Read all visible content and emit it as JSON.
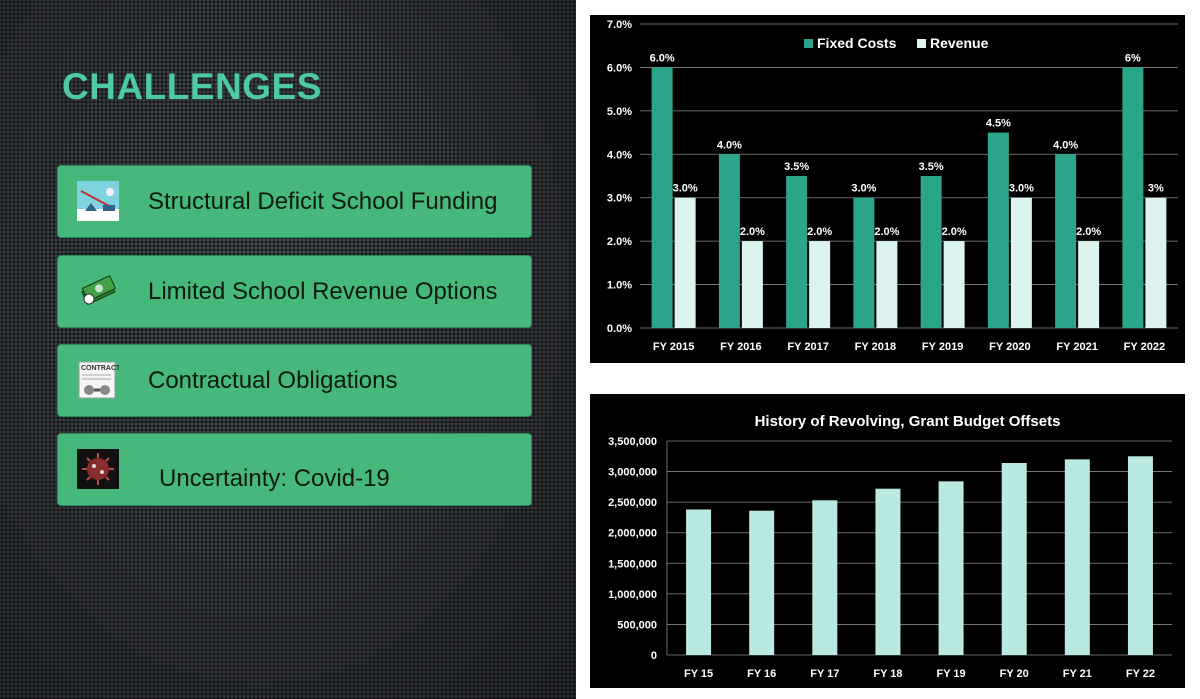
{
  "slide": {
    "title": "CHALLENGES"
  },
  "challenges": [
    {
      "label": "Structural Deficit School Funding",
      "icon": "scale-balance-icon"
    },
    {
      "label": "Limited School Revenue Options",
      "icon": "money-stack-icon"
    },
    {
      "label": "Contractual Obligations",
      "icon": "contract-document-icon"
    },
    {
      "label": "Uncertainty: Covid-19",
      "icon": "virus-icon"
    }
  ],
  "colors": {
    "title": "#4dc9a4",
    "card": "#47b87c",
    "fixed_costs": "#2aa58a",
    "revenue": "#ddf3ef",
    "offsets_bar": "#b9e9e0"
  },
  "chart_data": [
    {
      "type": "bar",
      "title": "",
      "categories": [
        "FY 2015",
        "FY 2016",
        "FY 2017",
        "FY 2018",
        "FY 2019",
        "FY 2020",
        "FY 2021",
        "FY 2022"
      ],
      "series": [
        {
          "name": "Fixed Costs",
          "values": [
            6.0,
            4.0,
            3.5,
            3.0,
            3.5,
            4.5,
            4.0,
            6.0
          ],
          "labels": [
            "6.0%",
            "4.0%",
            "3.5%",
            "3.0%",
            "3.5%",
            "4.5%",
            "4.0%",
            "6%"
          ]
        },
        {
          "name": "Revenue",
          "values": [
            3.0,
            2.0,
            2.0,
            2.0,
            2.0,
            3.0,
            2.0,
            3.0
          ],
          "labels": [
            "3.0%",
            "2.0%",
            "2.0%",
            "2.0%",
            "2.0%",
            "3.0%",
            "2.0%",
            "3%"
          ]
        }
      ],
      "ylim": [
        0,
        7
      ],
      "yticks": [
        "0.0%",
        "1.0%",
        "2.0%",
        "3.0%",
        "4.0%",
        "5.0%",
        "6.0%",
        "7.0%"
      ],
      "grid": true,
      "legend": "top-center"
    },
    {
      "type": "bar",
      "title": "History of Revolving, Grant Budget Offsets",
      "categories": [
        "FY 15",
        "FY 16",
        "FY 17",
        "FY 18",
        "FY 19",
        "FY 20",
        "FY 21",
        "FY 22"
      ],
      "values": [
        2380000,
        2360000,
        2530000,
        2720000,
        2840000,
        3140000,
        3200000,
        3250000
      ],
      "ylim": [
        0,
        3500000
      ],
      "yticks": [
        "0",
        "500,000",
        "1,000,000",
        "1,500,000",
        "2,000,000",
        "2,500,000",
        "3,000,000",
        "3,500,000"
      ],
      "grid": true
    }
  ]
}
